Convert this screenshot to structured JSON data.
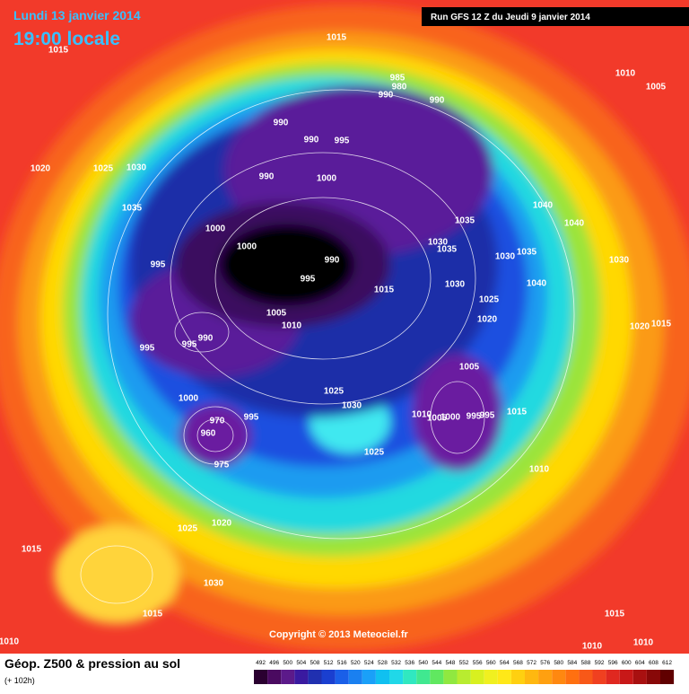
{
  "header": {
    "date": "Lundi 13 janvier 2014",
    "time": "19:00 locale",
    "run": "Run GFS 12 Z du Jeudi 9 janvier 2014"
  },
  "isobar_labels": [
    "1015",
    "1015",
    "1010",
    "1005",
    "985",
    "980",
    "990",
    "990",
    "990",
    "990",
    "995",
    "1020",
    "1025",
    "1030",
    "990",
    "1000",
    "1035",
    "1040",
    "1040",
    "1035",
    "1000",
    "1000",
    "1030",
    "1035",
    "1035",
    "1030",
    "990",
    "1030",
    "995",
    "995",
    "1015",
    "1030",
    "1040",
    "1025",
    "1005",
    "1010",
    "1020",
    "1020",
    "1015",
    "990",
    "995",
    "995",
    "1005",
    "1025",
    "1030",
    "1000",
    "1010",
    "1005",
    "1000",
    "995",
    "995",
    "1015",
    "970",
    "995",
    "960",
    "975",
    "1025",
    "1010",
    "1020",
    "1025",
    "1015",
    "1030",
    "1015",
    "1015",
    "1010",
    "1010",
    "1010"
  ],
  "footer": {
    "title": "Géop. Z500 & pression au sol",
    "lead": "(+ 102h)",
    "copyright": "Copyright © 2013 Meteociel.fr"
  },
  "colorbar": {
    "ticks": [
      492,
      496,
      500,
      504,
      508,
      512,
      516,
      520,
      524,
      528,
      532,
      536,
      540,
      544,
      548,
      552,
      556,
      560,
      564,
      568,
      572,
      576,
      580,
      584,
      588,
      592,
      596,
      600,
      604,
      608,
      612
    ]
  }
}
